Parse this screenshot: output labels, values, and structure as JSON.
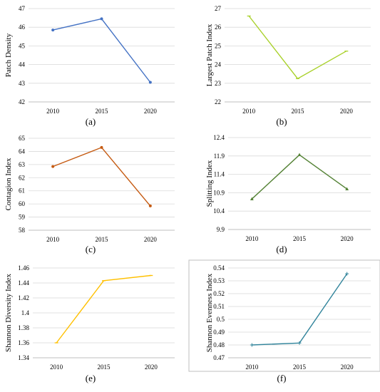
{
  "chart_data": [
    {
      "type": "line",
      "caption": "(a)",
      "ylabel": "Patch Density",
      "x": [
        "2010",
        "2015",
        "2020"
      ],
      "series": [
        {
          "values": [
            45.85,
            46.45,
            43.05
          ]
        }
      ],
      "ylim": [
        42,
        47
      ],
      "yticks": [
        "42",
        "43",
        "44",
        "45",
        "46",
        "47"
      ],
      "grid": true,
      "color": "#4472C4",
      "marker": "circle"
    },
    {
      "type": "line",
      "caption": "(b)",
      "ylabel": "Largest Patch Index",
      "x": [
        "2010",
        "2015",
        "2020"
      ],
      "series": [
        {
          "values": [
            26.6,
            23.25,
            24.72
          ]
        }
      ],
      "ylim": [
        22,
        27
      ],
      "yticks": [
        "22",
        "23",
        "24",
        "25",
        "26",
        "27"
      ],
      "grid": true,
      "color": "#A9D12B",
      "marker": "dash"
    },
    {
      "type": "line",
      "caption": "(c)",
      "ylabel": "Contagion Index",
      "x": [
        "2010",
        "2015",
        "2020"
      ],
      "series": [
        {
          "values": [
            62.85,
            64.3,
            59.85
          ]
        }
      ],
      "ylim": [
        58,
        65
      ],
      "yticks": [
        "58",
        "59",
        "60",
        "61",
        "62",
        "63",
        "64",
        "65"
      ],
      "grid": true,
      "color": "#C55A11",
      "marker": "circle"
    },
    {
      "type": "line",
      "caption": "(d)",
      "ylabel": "Splitting Index",
      "x": [
        "2010",
        "2015",
        "2020"
      ],
      "series": [
        {
          "values": [
            10.73,
            11.93,
            11.0
          ]
        }
      ],
      "ylim": [
        9.9,
        12.4
      ],
      "yticks": [
        "9.9",
        "10.4",
        "10.9",
        "11.4",
        "11.9",
        "12.4"
      ],
      "grid": true,
      "color": "#548235",
      "marker": "triangle"
    },
    {
      "type": "line",
      "caption": "(e)",
      "ylabel": "Shannon Diversity Index",
      "x": [
        "2010",
        "2015",
        "2020"
      ],
      "series": [
        {
          "values": [
            1.36,
            1.443,
            1.45
          ]
        }
      ],
      "ylim": [
        1.34,
        1.46
      ],
      "yticks": [
        "1.34",
        "1.36",
        "1.38",
        "1.4",
        "1.42",
        "1.44",
        "1.46"
      ],
      "grid": true,
      "color": "#FFC000",
      "marker": "dash"
    },
    {
      "type": "line",
      "caption": "(f)",
      "ylabel": "Shannon Evenness Index",
      "x": [
        "2010",
        "2015",
        "2020"
      ],
      "series": [
        {
          "values": [
            0.48,
            0.4815,
            0.5355
          ]
        }
      ],
      "ylim": [
        0.47,
        0.54
      ],
      "yticks": [
        "0.47",
        "0.48",
        "0.49",
        "0.5",
        "0.51",
        "0.52",
        "0.53",
        "0.54"
      ],
      "grid": true,
      "color": "#31849B",
      "marker": "plus"
    }
  ]
}
